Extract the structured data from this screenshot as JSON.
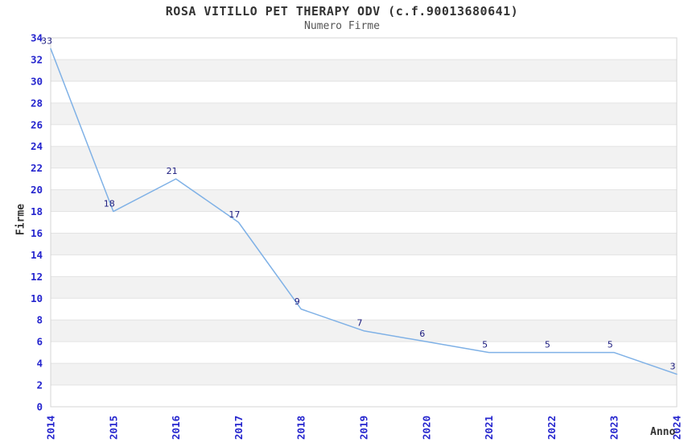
{
  "chart_data": {
    "type": "line",
    "title": "ROSA VITILLO PET THERAPY ODV (c.f.90013680641)",
    "subtitle": "Numero Firme",
    "xlabel": "Anno",
    "ylabel": "Firme",
    "categories": [
      "2014",
      "2015",
      "2016",
      "2017",
      "2018",
      "2019",
      "2020",
      "2021",
      "2022",
      "2023",
      "2024"
    ],
    "values": [
      33,
      18,
      21,
      17,
      9,
      7,
      6,
      5,
      5,
      5,
      3
    ],
    "ylim": [
      0,
      34
    ],
    "ytick_step": 2,
    "grid": true,
    "legend_position": "none",
    "band_pattern": "alternating horizontal bands every 2 units, gray on 2-4, 6-8, ... 30-32",
    "colors": {
      "line": "#7FB1E6",
      "tick_label": "#2525CE",
      "data_label": "#1B1B7E",
      "band": "#F2F2F2",
      "gridline": "#E3E3E3",
      "border": "#D4D4D4",
      "title": "#333333",
      "subtitle": "#555555",
      "axis_title": "#333333",
      "background": "#FFFFFF"
    }
  }
}
